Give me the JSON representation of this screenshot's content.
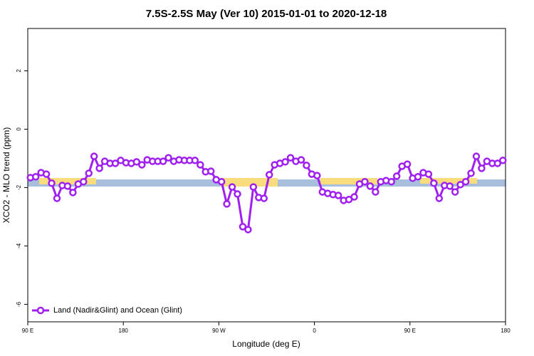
{
  "chart_data": {
    "type": "line",
    "title": "7.5S-2.5S May (Ver 10)   2015-01-01 to 2020-12-18",
    "x_label": "Longitude (deg E)",
    "y_label": "XCO2 - MLO trend (ppm)",
    "xlim": [
      90,
      540
    ],
    "ylim": [
      -6.6,
      3.45
    ],
    "xticks": [
      {
        "value": 90,
        "label": "90 E"
      },
      180,
      {
        "value": 270,
        "label": "90 W"
      },
      {
        "value": 360,
        "label": "0"
      },
      {
        "value": 450,
        "label": "90 E"
      },
      {
        "value": 540,
        "label": "180"
      }
    ],
    "yticks": [
      -6,
      -4,
      -2,
      0,
      2
    ],
    "legend": "bottom-left",
    "x": [
      92.5,
      97.5,
      102.5,
      107.5,
      112.5,
      117.5,
      122.5,
      127.5,
      132.5,
      137.5,
      142.5,
      147.5,
      152.5,
      157.5,
      162.5,
      167.5,
      172.5,
      177.5,
      182.5,
      187.5,
      192.5,
      197.5,
      202.5,
      207.5,
      212.5,
      217.5,
      222.5,
      227.5,
      232.5,
      237.5,
      242.5,
      247.5,
      252.5,
      257.5,
      262.5,
      267.5,
      272.5,
      277.5,
      282.5,
      287.5,
      292.5,
      297.5,
      302.5,
      307.5,
      312.5,
      317.5,
      322.5,
      327.5,
      332.5,
      337.5,
      342.5,
      347.5,
      352.5,
      357.5,
      362.5,
      367.5,
      372.5,
      377.5,
      382.5,
      387.5,
      392.5,
      397.5,
      402.5,
      407.5,
      412.5,
      417.5,
      422.5,
      427.5,
      432.5,
      437.5,
      442.5,
      447.5,
      452.5,
      457.5,
      462.5,
      467.5,
      472.5,
      477.5,
      482.5,
      487.5,
      492.5,
      497.5,
      502.5,
      507.5,
      512.5,
      517.5,
      522.5,
      527.5,
      532.5,
      537.5
    ],
    "series": [
      {
        "name": "Land (Nadir&Glint) and Ocean (Glint)",
        "color": "#a020f0",
        "values": [
          -1.66,
          -1.63,
          -1.49,
          -1.54,
          -1.85,
          -2.37,
          -1.93,
          -1.95,
          -2.17,
          -1.88,
          -1.8,
          -1.51,
          -0.93,
          -1.34,
          -1.1,
          -1.17,
          -1.17,
          -1.07,
          -1.15,
          -1.17,
          -1.12,
          -1.22,
          -1.05,
          -1.1,
          -1.1,
          -1.1,
          -0.98,
          -1.1,
          -1.05,
          -1.07,
          -1.07,
          -1.07,
          -1.22,
          -1.46,
          -1.44,
          -1.73,
          -1.8,
          -2.56,
          -1.98,
          -2.22,
          -3.34,
          -3.44,
          -1.98,
          -2.34,
          -2.37,
          -1.56,
          -1.22,
          -1.17,
          -1.12,
          -0.98,
          -1.1,
          -1.05,
          -1.24,
          -1.54,
          -1.59,
          -2.15,
          -2.2,
          -2.24,
          -2.27,
          -2.44,
          -2.41,
          -2.32,
          -1.88,
          -1.8,
          -1.95,
          -2.15,
          -1.8,
          -1.76,
          -1.8,
          -1.61,
          -1.27,
          -1.2,
          -1.68,
          -1.63,
          -1.49,
          -1.54,
          -1.85,
          -2.37,
          -1.93,
          -1.95,
          -2.15,
          -1.9,
          -1.8,
          -1.51,
          -0.93,
          -1.34,
          -1.1,
          -1.17,
          -1.17,
          -1.07
        ]
      }
    ]
  }
}
